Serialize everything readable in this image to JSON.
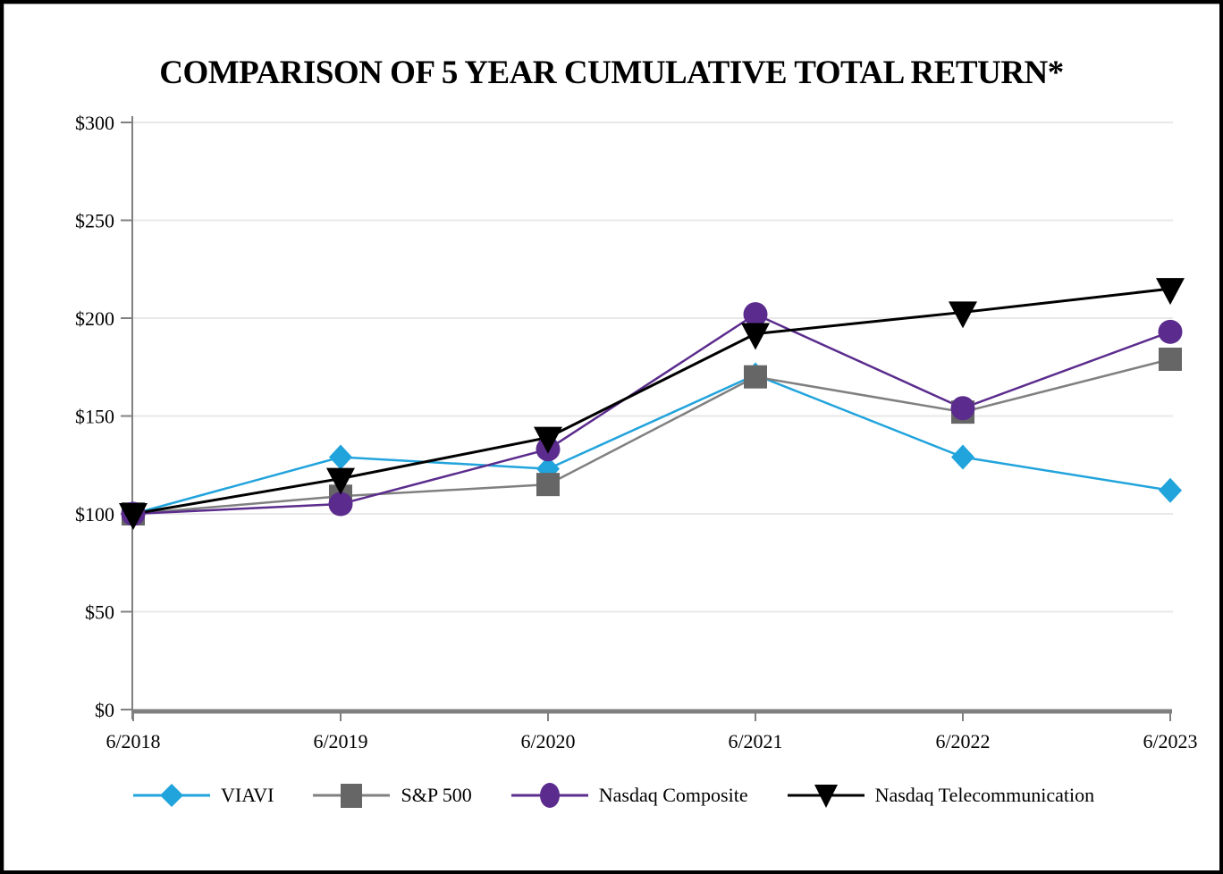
{
  "page": {
    "background": "#FFFFFF",
    "frame_border_color": "#000000"
  },
  "chart_data": {
    "type": "line",
    "title": "COMPARISON OF 5 YEAR CUMULATIVE TOTAL RETURN*",
    "categories": [
      "6/2018",
      "6/2019",
      "6/2020",
      "6/2021",
      "6/2022",
      "6/2023"
    ],
    "series": [
      {
        "name": "VIAVI",
        "marker": "diamond",
        "color": "#21A3DC",
        "line_color": "#21A3DC",
        "values": [
          100,
          129,
          123,
          171,
          129,
          112
        ]
      },
      {
        "name": "S&P 500",
        "marker": "square",
        "color": "#666666",
        "line_color": "#808080",
        "values": [
          100,
          109,
          115,
          170,
          152,
          179
        ]
      },
      {
        "name": "Nasdaq Composite",
        "marker": "circle",
        "color": "#5B2C8D",
        "line_color": "#5B2C8D",
        "values": [
          100,
          105,
          133,
          202,
          154,
          193
        ]
      },
      {
        "name": "Nasdaq Telecommunication",
        "marker": "triangle-down",
        "color": "#000000",
        "line_color": "#000000",
        "values": [
          100,
          118,
          139,
          192,
          203,
          215
        ]
      }
    ],
    "ylim": [
      0,
      300
    ],
    "y_tick_step": 50,
    "y_tick_labels": [
      "$0",
      "$50",
      "$100",
      "$150",
      "$200",
      "$250",
      "$300"
    ],
    "grid": "horizontal-only",
    "legend_position": "bottom",
    "colors": {
      "gridline": "#E8E8E8",
      "axis": "#808080",
      "x_axis": "#7F7F7F",
      "text": "#000000"
    }
  }
}
